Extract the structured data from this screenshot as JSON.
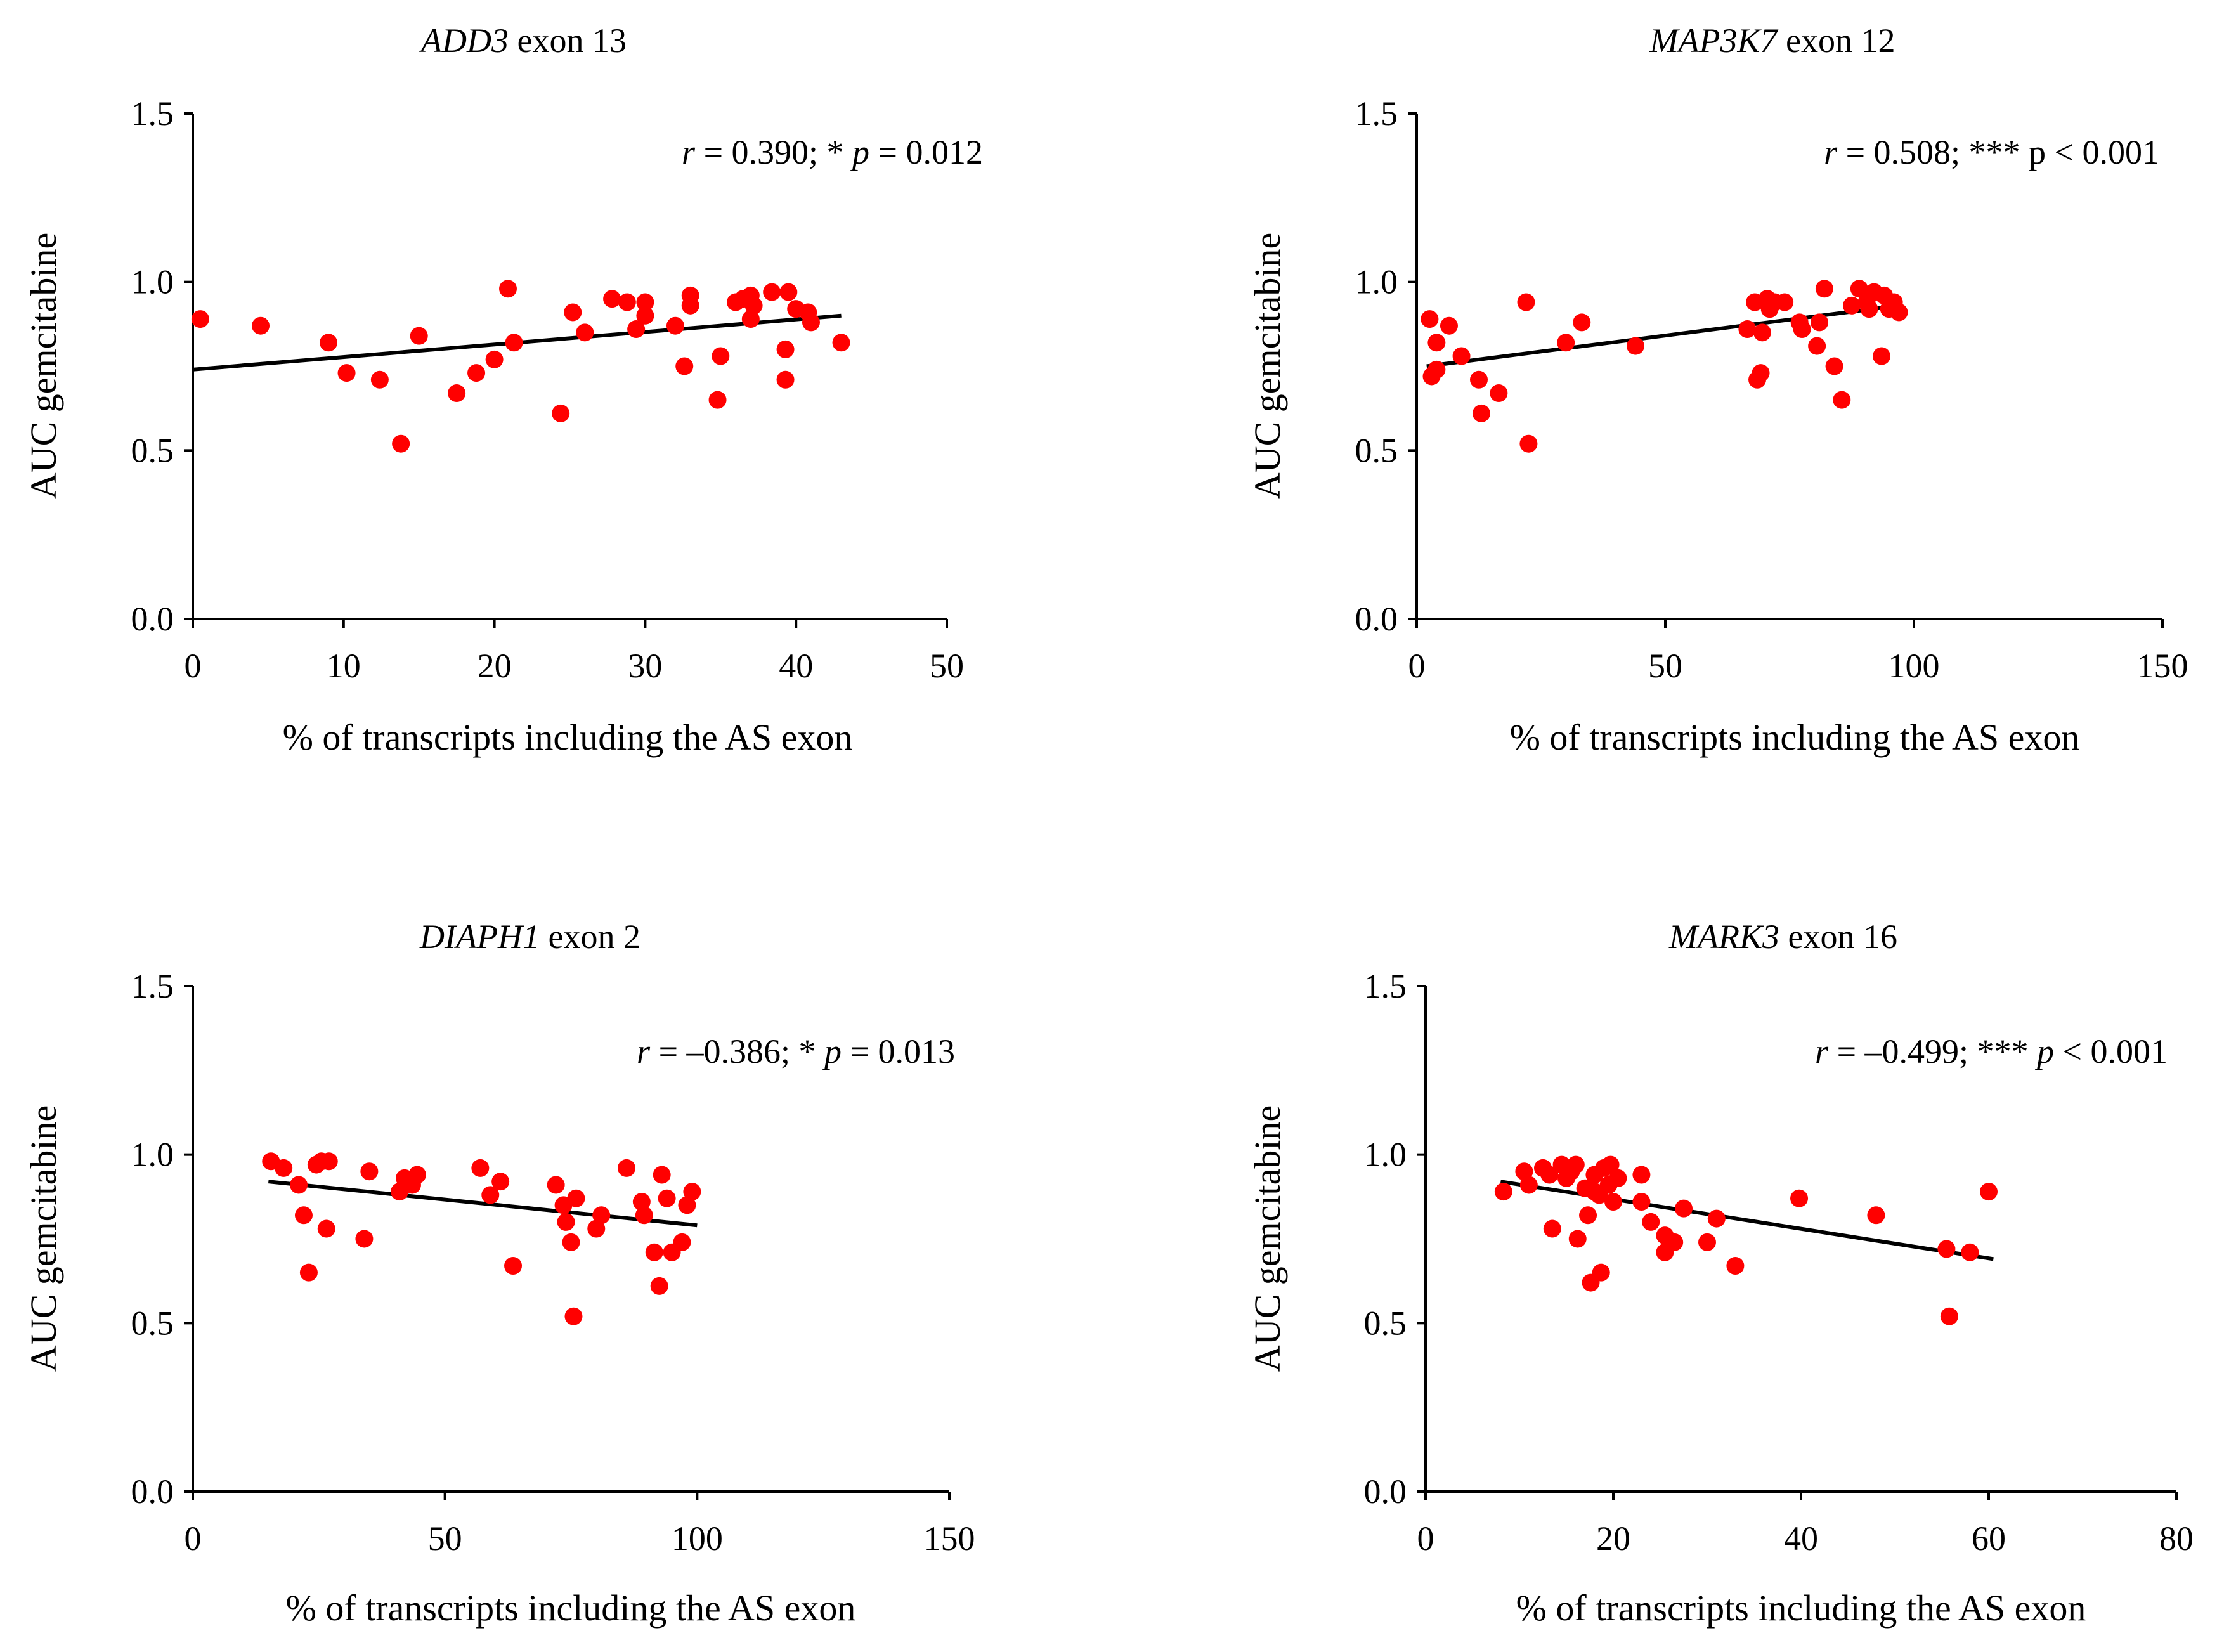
{
  "chart_data": [
    {
      "type": "scatter",
      "title": {
        "gene": "ADD3",
        "suffix": " exon 13"
      },
      "xlabel": "% of transcripts including the AS exon",
      "ylabel": "AUC gemcitabine",
      "xlim": [
        0,
        50
      ],
      "ylim": [
        0,
        1.5
      ],
      "xticks": [
        "0",
        "10",
        "20",
        "30",
        "40",
        "50"
      ],
      "yticks": [
        "0.0",
        "0.5",
        "1.0",
        "1.5"
      ],
      "stat": {
        "r": "r",
        "r_text": " = 0.390; * ",
        "p": "p",
        "p_text": " = 0.012"
      },
      "trendline": [
        [
          0,
          0.74
        ],
        [
          43,
          0.9
        ]
      ],
      "points": [
        [
          0.5,
          0.89
        ],
        [
          4.5,
          0.87
        ],
        [
          9,
          0.82
        ],
        [
          10.2,
          0.73
        ],
        [
          12.4,
          0.71
        ],
        [
          13.8,
          0.52
        ],
        [
          15,
          0.84
        ],
        [
          17.5,
          0.67
        ],
        [
          18.8,
          0.73
        ],
        [
          20,
          0.77
        ],
        [
          20.9,
          0.98
        ],
        [
          21.3,
          0.82
        ],
        [
          24.4,
          0.61
        ],
        [
          25.2,
          0.91
        ],
        [
          26,
          0.85
        ],
        [
          27.8,
          0.95
        ],
        [
          28.8,
          0.94
        ],
        [
          29.4,
          0.86
        ],
        [
          30,
          0.94
        ],
        [
          30,
          0.9
        ],
        [
          32,
          0.87
        ],
        [
          32.6,
          0.75
        ],
        [
          33,
          0.96
        ],
        [
          33,
          0.93
        ],
        [
          34.8,
          0.65
        ],
        [
          35,
          0.78
        ],
        [
          36,
          0.94
        ],
        [
          36.5,
          0.95
        ],
        [
          37,
          0.96
        ],
        [
          37,
          0.89
        ],
        [
          37.2,
          0.93
        ],
        [
          38.4,
          0.97
        ],
        [
          39.3,
          0.8
        ],
        [
          39.3,
          0.71
        ],
        [
          39.5,
          0.97
        ],
        [
          40,
          0.92
        ],
        [
          40.8,
          0.91
        ],
        [
          41,
          0.88
        ],
        [
          43,
          0.82
        ]
      ]
    },
    {
      "type": "scatter",
      "title": {
        "gene": "MAP3K7",
        "suffix": " exon 12"
      },
      "xlabel": "% of transcripts including the AS exon",
      "ylabel": "AUC gemcitabine",
      "xlim": [
        0,
        150
      ],
      "ylim": [
        0,
        1.5
      ],
      "xticks": [
        "0",
        "50",
        "100",
        "150"
      ],
      "yticks": [
        "0.0",
        "0.5",
        "1.0",
        "1.5"
      ],
      "stat": {
        "r": "r",
        "r_text": " = 0.508; *** p < 0.001"
      },
      "trendline": [
        [
          2,
          0.75
        ],
        [
          97,
          0.93
        ]
      ],
      "points": [
        [
          2.6,
          0.89
        ],
        [
          3,
          0.72
        ],
        [
          4,
          0.82
        ],
        [
          4,
          0.74
        ],
        [
          6.5,
          0.87
        ],
        [
          9,
          0.78
        ],
        [
          12.5,
          0.71
        ],
        [
          13,
          0.61
        ],
        [
          16.5,
          0.67
        ],
        [
          22,
          0.94
        ],
        [
          22.5,
          0.52
        ],
        [
          30,
          0.82
        ],
        [
          33.2,
          0.88
        ],
        [
          44,
          0.81
        ],
        [
          66.5,
          0.86
        ],
        [
          68,
          0.94
        ],
        [
          68.5,
          0.71
        ],
        [
          69.2,
          0.73
        ],
        [
          69.5,
          0.85
        ],
        [
          70.5,
          0.95
        ],
        [
          71,
          0.92
        ],
        [
          72,
          0.94
        ],
        [
          74,
          0.94
        ],
        [
          77,
          0.88
        ],
        [
          77.5,
          0.86
        ],
        [
          80.5,
          0.81
        ],
        [
          81,
          0.88
        ],
        [
          82,
          0.98
        ],
        [
          84,
          0.75
        ],
        [
          85.5,
          0.65
        ],
        [
          87.5,
          0.93
        ],
        [
          89,
          0.98
        ],
        [
          90.5,
          0.94
        ],
        [
          91,
          0.92
        ],
        [
          92,
          0.97
        ],
        [
          93.5,
          0.78
        ],
        [
          94,
          0.96
        ],
        [
          95,
          0.92
        ],
        [
          96,
          0.94
        ],
        [
          97,
          0.91
        ]
      ]
    },
    {
      "type": "scatter",
      "title": {
        "gene": "DIAPH1",
        "suffix": " exon 2"
      },
      "xlabel": "% of transcripts including the AS exon",
      "ylabel": "AUC gemcitabine",
      "xlim": [
        0,
        150
      ],
      "ylim": [
        0,
        1.5
      ],
      "xticks": [
        "0",
        "50",
        "100",
        "150"
      ],
      "yticks": [
        "0.0",
        "0.5",
        "1.0",
        "1.5"
      ],
      "stat": {
        "r": "r",
        "r_text": " = –0.386; * ",
        "p": "p",
        "p_text": " = 0.013"
      },
      "trendline": [
        [
          15,
          0.92
        ],
        [
          100,
          0.79
        ]
      ],
      "points": [
        [
          15.5,
          0.98
        ],
        [
          18,
          0.96
        ],
        [
          21,
          0.91
        ],
        [
          22,
          0.82
        ],
        [
          23,
          0.65
        ],
        [
          24.5,
          0.97
        ],
        [
          25.5,
          0.98
        ],
        [
          26.5,
          0.78
        ],
        [
          27,
          0.98
        ],
        [
          34,
          0.75
        ],
        [
          35,
          0.95
        ],
        [
          41,
          0.89
        ],
        [
          42,
          0.93
        ],
        [
          43.5,
          0.91
        ],
        [
          44.5,
          0.94
        ],
        [
          57,
          0.96
        ],
        [
          59,
          0.88
        ],
        [
          61,
          0.92
        ],
        [
          63.5,
          0.67
        ],
        [
          72,
          0.91
        ],
        [
          73.5,
          0.85
        ],
        [
          74,
          0.8
        ],
        [
          75,
          0.74
        ],
        [
          75.5,
          0.52
        ],
        [
          76,
          0.87
        ],
        [
          80,
          0.78
        ],
        [
          81,
          0.82
        ],
        [
          86,
          0.96
        ],
        [
          89,
          0.86
        ],
        [
          89.5,
          0.82
        ],
        [
          91.5,
          0.71
        ],
        [
          92.5,
          0.61
        ],
        [
          93,
          0.94
        ],
        [
          94,
          0.87
        ],
        [
          95,
          0.71
        ],
        [
          97,
          0.74
        ],
        [
          98,
          0.85
        ],
        [
          99,
          0.89
        ]
      ]
    },
    {
      "type": "scatter",
      "title": {
        "gene": "MARK3",
        "suffix": " exon 16"
      },
      "xlabel": "% of transcripts including the AS exon",
      "ylabel": "AUC gemcitabine",
      "xlim": [
        0,
        80
      ],
      "ylim": [
        0,
        1.5
      ],
      "xticks": [
        "0",
        "20",
        "40",
        "60",
        "80"
      ],
      "yticks": [
        "0.0",
        "0.5",
        "1.0",
        "1.5"
      ],
      "stat": {
        "r": "r",
        "r_text": " = –0.499; *** ",
        "p": "p",
        "p_text": " < 0.001"
      },
      "trendline": [
        [
          8,
          0.92
        ],
        [
          60.5,
          0.69
        ]
      ],
      "points": [
        [
          8.3,
          0.89
        ],
        [
          10.5,
          0.95
        ],
        [
          11,
          0.91
        ],
        [
          12.5,
          0.96
        ],
        [
          13.2,
          0.94
        ],
        [
          13.5,
          0.78
        ],
        [
          14.5,
          0.97
        ],
        [
          15,
          0.93
        ],
        [
          15.5,
          0.95
        ],
        [
          16,
          0.97
        ],
        [
          16.2,
          0.75
        ],
        [
          17,
          0.9
        ],
        [
          17.3,
          0.82
        ],
        [
          17.6,
          0.62
        ],
        [
          18,
          0.89
        ],
        [
          18,
          0.94
        ],
        [
          18.5,
          0.88
        ],
        [
          18.7,
          0.65
        ],
        [
          19,
          0.96
        ],
        [
          19.5,
          0.91
        ],
        [
          19.7,
          0.97
        ],
        [
          20,
          0.86
        ],
        [
          20.5,
          0.93
        ],
        [
          23,
          0.94
        ],
        [
          23,
          0.86
        ],
        [
          24,
          0.8
        ],
        [
          25.5,
          0.76
        ],
        [
          25.5,
          0.71
        ],
        [
          26.5,
          0.74
        ],
        [
          27.5,
          0.84
        ],
        [
          30,
          0.74
        ],
        [
          31,
          0.81
        ],
        [
          33,
          0.67
        ],
        [
          39.8,
          0.87
        ],
        [
          48,
          0.82
        ],
        [
          55.5,
          0.72
        ],
        [
          55.8,
          0.52
        ],
        [
          58,
          0.71
        ],
        [
          60,
          0.89
        ]
      ]
    }
  ]
}
